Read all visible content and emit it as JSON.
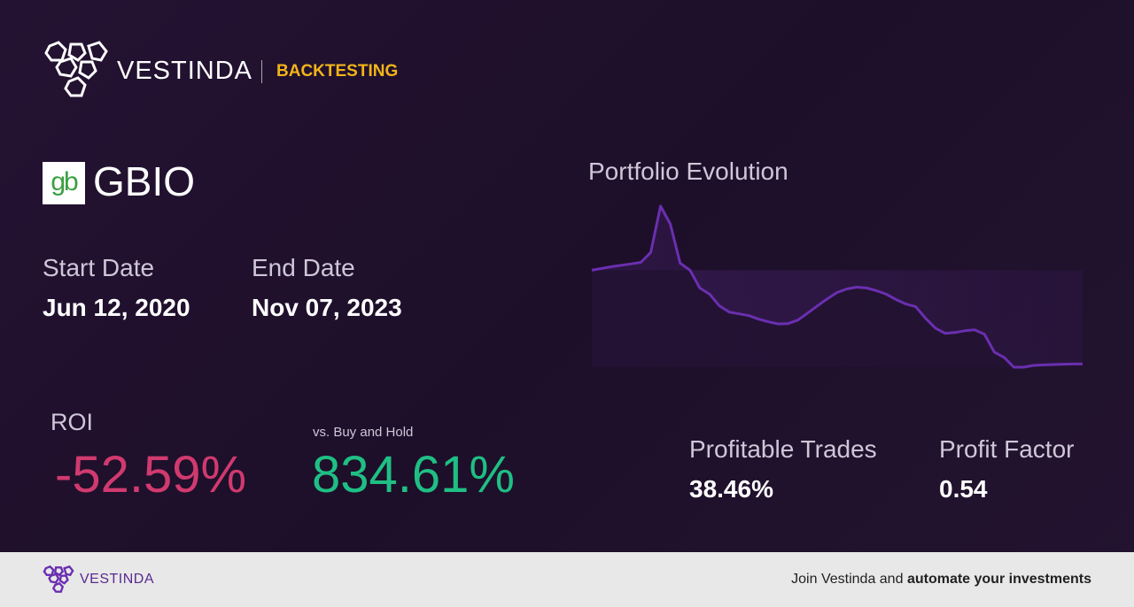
{
  "header": {
    "brand": "VESTINDA",
    "section": "BACKTESTING"
  },
  "ticker": {
    "logo": "gb",
    "symbol": "GBIO"
  },
  "dates": {
    "start_label": "Start Date",
    "start": "Jun 12, 2020",
    "end_label": "End Date",
    "end": "Nov 07, 2023"
  },
  "roi": {
    "label": "ROI",
    "value": "-52.59%",
    "compare_label": "vs. Buy and Hold",
    "compare_value": "834.61%"
  },
  "stats": {
    "trades_label": "Profitable Trades",
    "trades": "38.46%",
    "factor_label": "Profit Factor",
    "factor": "0.54"
  },
  "chart": {
    "type": "line",
    "title": "Portfolio Evolution",
    "color": "#6a2fb0",
    "values": [
      100,
      101,
      102,
      102.8,
      103.6,
      104.4,
      110,
      136,
      126,
      104,
      100,
      90,
      86.5,
      80,
      76.5,
      75.5,
      74.5,
      72.5,
      71,
      69.8,
      70,
      72,
      76,
      80,
      84,
      87.5,
      89.5,
      90.5,
      90,
      88.5,
      86.5,
      83.5,
      81,
      79.5,
      73,
      67.5,
      64.5,
      65,
      66,
      66.5,
      64,
      54,
      51,
      45.5,
      45.5,
      46.5,
      46.8,
      47,
      47.2,
      47.3,
      47.41
    ]
  },
  "footer": {
    "brand": "VESTINDA",
    "text": "Join Vestinda and",
    "bold": "automate your investments"
  }
}
